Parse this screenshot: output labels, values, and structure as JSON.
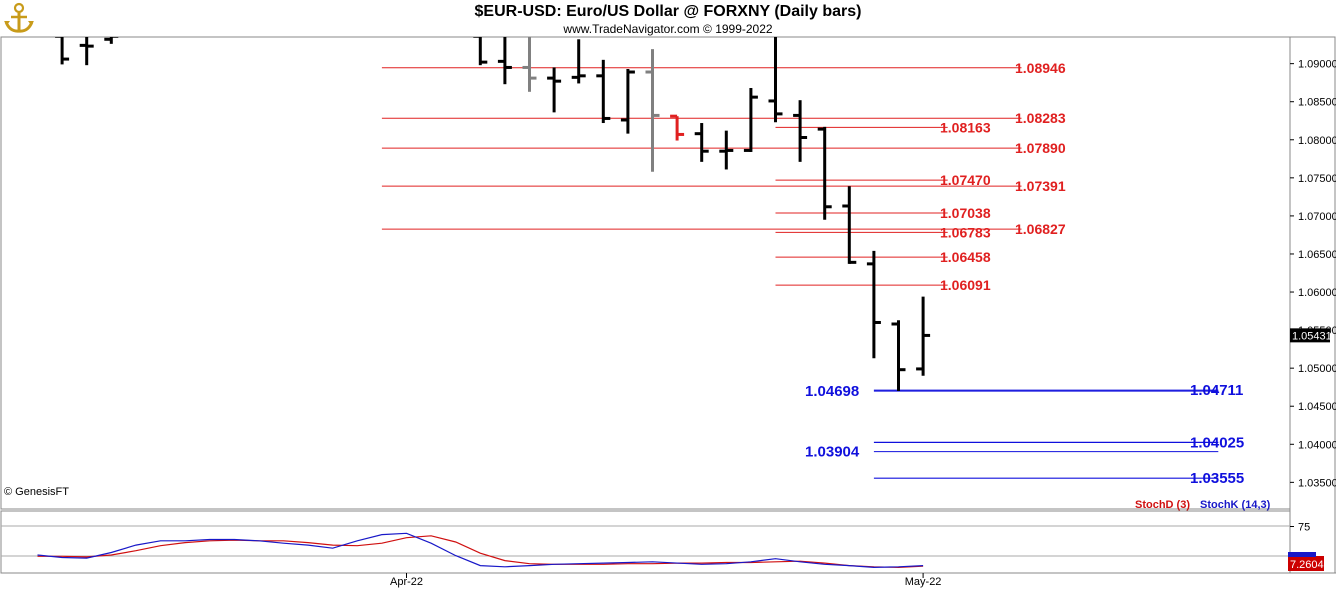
{
  "header": {
    "title": "$EUR-USD:  Euro/US Dollar @ FORXNY  (Daily bars)",
    "subtitle": "www.TradeNavigator.com © 1999-2022",
    "logo_icon": "anchor-logo-icon"
  },
  "copyright": "© GenesisFT",
  "colors": {
    "resistance": "#e02020",
    "support": "#1010dd",
    "bars": "#000000",
    "gray_bars": "#808080",
    "stoch_d": "#d01010",
    "stoch_k": "#1818c8",
    "last_price_bg": "#000000",
    "stoch_value_bg": "#cc0000"
  },
  "chart_data": [
    {
      "type": "ohlc",
      "title": "$EUR-USD:  Euro/US Dollar @ FORXNY  (Daily bars)",
      "ylim": [
        1.0315,
        1.0935
      ],
      "y_ticks": [
        {
          "label": "1.09000",
          "value": 1.09
        },
        {
          "label": "1.08500",
          "value": 1.085
        },
        {
          "label": "1.08000",
          "value": 1.08
        },
        {
          "label": "1.07500",
          "value": 1.075
        },
        {
          "label": "1.07000",
          "value": 1.07
        },
        {
          "label": "1.06500",
          "value": 1.065
        },
        {
          "label": "1.06000",
          "value": 1.06
        },
        {
          "label": "1.05500",
          "value": 1.055
        },
        {
          "label": "1.05000",
          "value": 1.05
        },
        {
          "label": "1.04500",
          "value": 1.045
        },
        {
          "label": "1.04000",
          "value": 1.04
        },
        {
          "label": "1.03500",
          "value": 1.035
        }
      ],
      "x_ticks": [
        {
          "label": "Apr-22",
          "index": 15
        },
        {
          "label": "May-22",
          "index": 36
        }
      ],
      "last_price": {
        "label": "1.05431",
        "value": 1.05431
      },
      "bars": [
        {
          "i": 1,
          "o": 1.0936,
          "h": 1.0936,
          "l": 1.0899,
          "c": 1.0906
        },
        {
          "i": 2,
          "o": 1.0924,
          "h": 1.0936,
          "l": 1.0898,
          "c": 1.0923
        },
        {
          "i": 3,
          "o": 1.0932,
          "h": 1.0936,
          "l": 1.0926,
          "c": 1.0936
        },
        {
          "i": 18,
          "o": 1.0936,
          "h": 1.0936,
          "l": 1.0898,
          "c": 1.0902
        },
        {
          "i": 19,
          "o": 1.0903,
          "h": 1.0936,
          "l": 1.0873,
          "c": 1.0895
        },
        {
          "i": 20,
          "o": 1.0895,
          "h": 1.0936,
          "l": 1.0863,
          "c": 1.0881,
          "color": "gray"
        },
        {
          "i": 21,
          "o": 1.0881,
          "h": 1.0895,
          "l": 1.0836,
          "c": 1.0877
        },
        {
          "i": 22,
          "o": 1.0882,
          "h": 1.0932,
          "l": 1.0874,
          "c": 1.0884
        },
        {
          "i": 23,
          "o": 1.0884,
          "h": 1.0905,
          "l": 1.0822,
          "c": 1.0828
        },
        {
          "i": 24,
          "o": 1.0826,
          "h": 1.0893,
          "l": 1.0808,
          "c": 1.0889
        },
        {
          "i": 25,
          "o": 1.0889,
          "h": 1.0919,
          "l": 1.0758,
          "c": 1.0832,
          "color": "gray"
        },
        {
          "i": 26,
          "o": 1.0831,
          "h": 1.0831,
          "l": 1.0799,
          "c": 1.0807,
          "color": "red"
        },
        {
          "i": 27,
          "o": 1.0808,
          "h": 1.0822,
          "l": 1.0771,
          "c": 1.0785
        },
        {
          "i": 28,
          "o": 1.0785,
          "h": 1.0812,
          "l": 1.0761,
          "c": 1.0786
        },
        {
          "i": 29,
          "o": 1.0786,
          "h": 1.0868,
          "l": 1.0784,
          "c": 1.0856
        },
        {
          "i": 30,
          "o": 1.0851,
          "h": 1.0936,
          "l": 1.0823,
          "c": 1.0834
        },
        {
          "i": 31,
          "o": 1.0832,
          "h": 1.0852,
          "l": 1.0771,
          "c": 1.0803
        },
        {
          "i": 32,
          "o": 1.0814,
          "h": 1.0817,
          "l": 1.0695,
          "c": 1.0712
        },
        {
          "i": 33,
          "o": 1.0713,
          "h": 1.0739,
          "l": 1.0637,
          "c": 1.0639
        },
        {
          "i": 34,
          "o": 1.0637,
          "h": 1.0654,
          "l": 1.0513,
          "c": 1.056
        },
        {
          "i": 35,
          "o": 1.0558,
          "h": 1.0563,
          "l": 1.047,
          "c": 1.0498
        },
        {
          "i": 36,
          "o": 1.0499,
          "h": 1.0594,
          "l": 1.049,
          "c": 1.0543
        }
      ],
      "resistance_levels": [
        {
          "label": "1.08946",
          "value": 1.08946,
          "from_index": 14,
          "to_index": 40,
          "label_col": "right"
        },
        {
          "label": "1.08283",
          "value": 1.08283,
          "from_index": 14,
          "to_index": 40,
          "label_col": "right"
        },
        {
          "label": "1.08163",
          "value": 1.08163,
          "from_index": 30,
          "to_index": 37,
          "label_col": "left"
        },
        {
          "label": "1.07890",
          "value": 1.0789,
          "from_index": 14,
          "to_index": 40,
          "label_col": "right"
        },
        {
          "label": "1.07470",
          "value": 1.0747,
          "from_index": 30,
          "to_index": 37,
          "label_col": "left"
        },
        {
          "label": "1.07391",
          "value": 1.07391,
          "from_index": 14,
          "to_index": 40,
          "label_col": "right"
        },
        {
          "label": "1.07038",
          "value": 1.07038,
          "from_index": 30,
          "to_index": 37,
          "label_col": "left"
        },
        {
          "label": "1.06827",
          "value": 1.06827,
          "from_index": 14,
          "to_index": 40,
          "label_col": "right"
        },
        {
          "label": "1.06783",
          "value": 1.06783,
          "from_index": 30,
          "to_index": 37,
          "label_col": "left"
        },
        {
          "label": "1.06458",
          "value": 1.06458,
          "from_index": 30,
          "to_index": 37,
          "label_col": "left"
        },
        {
          "label": "1.06091",
          "value": 1.06091,
          "from_index": 30,
          "to_index": 37,
          "label_col": "left"
        }
      ],
      "support_levels": [
        {
          "label": "1.04698",
          "value": 1.04698,
          "side": "left",
          "from_index": 34,
          "to_index": 48
        },
        {
          "label": "1.04711",
          "value": 1.04711,
          "side": "right",
          "from_index": 34,
          "to_index": 48
        },
        {
          "label": "1.04025",
          "value": 1.04025,
          "side": "right",
          "from_index": 34,
          "to_index": 48
        },
        {
          "label": "1.03904",
          "value": 1.03904,
          "side": "left",
          "from_index": 34,
          "to_index": 48
        },
        {
          "label": "1.03555",
          "value": 1.03555,
          "side": "right",
          "from_index": 34,
          "to_index": 48
        }
      ]
    },
    {
      "type": "line",
      "ylim": [
        0,
        100
      ],
      "y_ticks": [
        {
          "label": "75",
          "value": 75
        }
      ],
      "value_label": "7.2604",
      "series": [
        {
          "name": "StochD (3)",
          "color": "red",
          "x": [
            0,
            1,
            2,
            3,
            4,
            5,
            6,
            7,
            8,
            9,
            10,
            11,
            12,
            13,
            14,
            15,
            16,
            17,
            18,
            19,
            20,
            21,
            22,
            23,
            24,
            25,
            26,
            27,
            28,
            29,
            30,
            31,
            32,
            33,
            34,
            35,
            36
          ],
          "values": [
            27,
            27,
            26,
            29,
            36,
            44,
            49,
            52,
            53,
            52,
            52,
            49,
            45,
            44,
            48,
            57,
            60,
            50,
            32,
            20,
            15,
            14,
            14,
            14,
            15,
            15,
            16,
            16,
            17,
            17,
            18,
            19,
            16,
            12,
            10,
            9,
            11
          ]
        },
        {
          "name": "StochK (14,3)",
          "color": "blue",
          "x": [
            0,
            1,
            2,
            3,
            4,
            5,
            6,
            7,
            8,
            9,
            10,
            11,
            12,
            13,
            14,
            15,
            16,
            17,
            18,
            19,
            20,
            21,
            22,
            23,
            24,
            25,
            25,
            27,
            28,
            29,
            30,
            31,
            32,
            33,
            34,
            35,
            36
          ],
          "values": [
            29,
            25,
            24,
            33,
            45,
            52,
            52,
            54,
            54,
            52,
            48,
            45,
            40,
            52,
            62,
            64,
            48,
            28,
            12,
            10,
            12,
            14,
            15,
            16,
            17,
            18,
            18,
            14,
            15,
            18,
            23,
            18,
            14,
            12,
            9,
            10,
            12
          ]
        }
      ]
    }
  ]
}
